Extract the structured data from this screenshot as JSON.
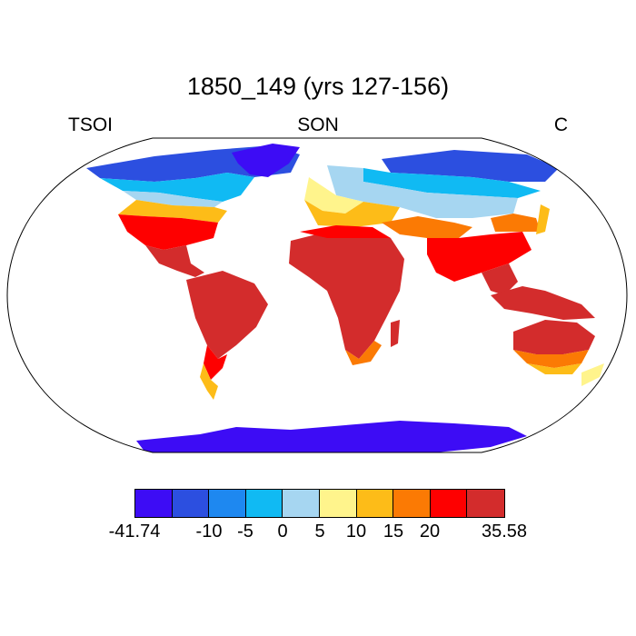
{
  "title": "1850_149 (yrs 127-156)",
  "left_label": "TSOI",
  "center_label": "SON",
  "right_label": "C",
  "colors": {
    "c1": "#3d0cf5",
    "c2": "#2c4fe0",
    "c3": "#1e88f0",
    "c4": "#10baf3",
    "c5": "#a6d6f1",
    "c6": "#fff48c",
    "c7": "#fdbc18",
    "c8": "#fb7a04",
    "c9": "#fe0000",
    "c10": "#d32c2c"
  },
  "colorbar": {
    "labels": [
      "-41.74",
      "-10",
      "-5",
      "0",
      "5",
      "10",
      "15",
      "20",
      "35.58"
    ]
  }
}
